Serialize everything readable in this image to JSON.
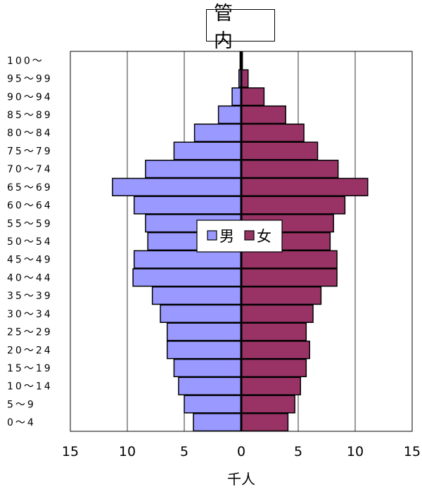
{
  "chart_data": {
    "type": "bar",
    "title": "管 内",
    "xlabel": "千人",
    "categories": [
      "100～",
      "95～99",
      "90～94",
      "85～89",
      "80～84",
      "75～79",
      "70～74",
      "65～69",
      "60～64",
      "55～59",
      "50～54",
      "45～49",
      "40～44",
      "35～39",
      "30～34",
      "25～29",
      "20～24",
      "15～19",
      "10～14",
      "5～9",
      "0～4"
    ],
    "series": [
      {
        "name": "男",
        "color": "#9999ff",
        "values": [
          0.1,
          0.2,
          0.8,
          2.0,
          4.1,
          5.9,
          8.4,
          11.3,
          9.4,
          8.4,
          8.2,
          9.4,
          9.5,
          7.8,
          7.1,
          6.5,
          6.5,
          5.9,
          5.5,
          5.0,
          4.2
        ]
      },
      {
        "name": "女",
        "color": "#993366",
        "values": [
          0.1,
          0.6,
          2.0,
          3.9,
          5.5,
          6.7,
          8.5,
          11.1,
          9.1,
          8.1,
          7.8,
          8.4,
          8.4,
          7.0,
          6.3,
          5.7,
          6.0,
          5.7,
          5.2,
          4.7,
          4.1
        ]
      }
    ],
    "xlim": [
      -15,
      15
    ],
    "ticks": [
      -15,
      -10,
      -5,
      0,
      5,
      10,
      15
    ],
    "tick_labels": [
      "15",
      "10",
      "5",
      "0",
      "5",
      "10",
      "15"
    ],
    "grid": true,
    "legend_position": "center"
  }
}
